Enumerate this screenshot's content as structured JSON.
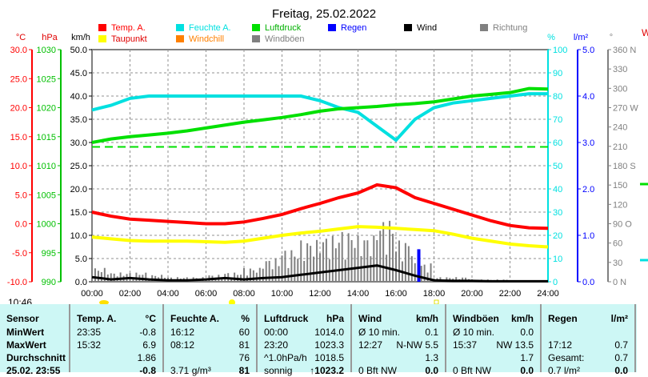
{
  "chart_data": {
    "type": "line",
    "title": "Freitag, 25.02.2022",
    "x_ticks": [
      "00:00",
      "02:00",
      "04:00",
      "06:00",
      "08:00",
      "10:00",
      "12:00",
      "14:00",
      "16:00",
      "18:00",
      "20:00",
      "22:00",
      "24:00"
    ],
    "x_hours": [
      0,
      1,
      2,
      3,
      4,
      5,
      6,
      7,
      8,
      9,
      10,
      11,
      12,
      13,
      14,
      15,
      16,
      17,
      18,
      19,
      20,
      21,
      22,
      23,
      24
    ],
    "axes": {
      "temp": {
        "unit": "°C",
        "range": [
          -10,
          30
        ],
        "ticks": [
          "-10.0",
          "-5.0",
          "0.0",
          "5.0",
          "10.0",
          "15.0",
          "20.0",
          "25.0",
          "30.0"
        ],
        "color": "#ff0000"
      },
      "pressure": {
        "unit": "hPa",
        "range": [
          990,
          1030
        ],
        "ticks": [
          "990",
          "995",
          "1000",
          "1005",
          "1010",
          "1015",
          "1020",
          "1025",
          "1030"
        ],
        "color": "#00c000"
      },
      "wind": {
        "unit": "km/h",
        "range": [
          0,
          50
        ],
        "ticks": [
          "0.0",
          "5.0",
          "10.0",
          "15.0",
          "20.0",
          "25.0",
          "30.0",
          "35.0",
          "40.0",
          "45.0",
          "50.0"
        ],
        "color": "#000000"
      },
      "humidity": {
        "unit": "%",
        "range": [
          0,
          100
        ],
        "ticks": [
          "0",
          "10",
          "20",
          "30",
          "40",
          "50",
          "60",
          "70",
          "80",
          "90",
          "100"
        ],
        "color": "#00e0e0"
      },
      "rain": {
        "unit": "l/m²",
        "range": [
          0,
          5
        ],
        "ticks": [
          "0.0",
          "1.0",
          "2.0",
          "3.0",
          "4.0",
          "5.0"
        ],
        "color": "#0000ff"
      },
      "direction": {
        "unit": "°",
        "range": [
          0,
          360
        ],
        "ticks": [
          "0   N",
          "30",
          "60",
          "90  O",
          "120",
          "150",
          "180 S",
          "210",
          "240",
          "270 W",
          "300",
          "330",
          "360 N"
        ],
        "color": "#808080"
      }
    },
    "legend": [
      {
        "label": "Temp. A.",
        "color": "#ff0000"
      },
      {
        "label": "Feuchte A.",
        "color": "#00e0e0"
      },
      {
        "label": "Luftdruck",
        "color": "#00e000"
      },
      {
        "label": "Regen",
        "color": "#0000ff"
      },
      {
        "label": "Wind",
        "color": "#000000"
      },
      {
        "label": "Richtung",
        "color": "#808080"
      },
      {
        "label": "Taupunkt",
        "color": "#ffff00"
      },
      {
        "label": "Windchill",
        "color": "#ff8000"
      },
      {
        "label": "Windböen",
        "color": "#808080"
      }
    ],
    "series": [
      {
        "name": "Temp. A.",
        "axis": "temp",
        "color": "#ff0000",
        "values": [
          2.0,
          1.3,
          0.8,
          0.6,
          0.4,
          0.2,
          0.0,
          0.0,
          0.3,
          0.9,
          1.6,
          2.6,
          3.5,
          4.5,
          5.3,
          6.7,
          6.2,
          4.5,
          3.5,
          2.5,
          1.5,
          0.5,
          -0.3,
          -0.7,
          -0.8
        ]
      },
      {
        "name": "Feuchte A.",
        "axis": "humidity",
        "color": "#00e0e0",
        "values": [
          74,
          76,
          79,
          80,
          80,
          80,
          80,
          80,
          80,
          80,
          80,
          80,
          78,
          75,
          73,
          67,
          61,
          70,
          75,
          77,
          78,
          79,
          80,
          81,
          81
        ]
      },
      {
        "name": "Luftdruck",
        "axis": "pressure",
        "color": "#00e000",
        "values": [
          1014.0,
          1014.6,
          1015.0,
          1015.3,
          1015.6,
          1016.0,
          1016.5,
          1017.0,
          1017.5,
          1017.9,
          1018.3,
          1018.8,
          1019.4,
          1019.8,
          1020.0,
          1020.2,
          1020.5,
          1020.7,
          1021.0,
          1021.5,
          1022.0,
          1022.3,
          1022.6,
          1023.3,
          1023.2
        ]
      },
      {
        "name": "Taupunkt",
        "axis": "temp",
        "color": "#ffff00",
        "values": [
          -2.3,
          -2.6,
          -2.9,
          -3.0,
          -3.0,
          -3.0,
          -3.1,
          -3.2,
          -3.0,
          -2.5,
          -2.0,
          -1.6,
          -1.3,
          -0.9,
          -0.5,
          -0.6,
          -0.8,
          -1.0,
          -1.2,
          -1.8,
          -2.5,
          -3.0,
          -3.5,
          -3.8,
          -4.0
        ]
      },
      {
        "name": "Wind",
        "axis": "wind",
        "color": "#000000",
        "values": [
          1.0,
          0.5,
          0.8,
          0.5,
          0.3,
          0.3,
          0.5,
          0.8,
          0.5,
          0.8,
          1.0,
          1.5,
          2.0,
          2.5,
          3.0,
          3.5,
          2.5,
          1.3,
          0.3,
          0.2,
          0.2,
          0.1,
          0.1,
          0.1,
          0.1
        ]
      },
      {
        "name": "Windböen",
        "axis": "wind",
        "color": "#808080",
        "type": "bar",
        "values": [
          3,
          2,
          2,
          1.5,
          1,
          1,
          1.5,
          2,
          3,
          5,
          7,
          9,
          10,
          11,
          10,
          13.5,
          9,
          4,
          1,
          1,
          0.5,
          0.5,
          0.3,
          0.3,
          0
        ]
      }
    ],
    "rain_bar": {
      "time": "17:12",
      "hour": 17.2,
      "value": 0.7
    },
    "reference_line": {
      "axis": "pressure",
      "value": 1013.25
    },
    "footer": {
      "time": "10:46"
    }
  },
  "table": {
    "headers": [
      [
        "Sensor",
        ""
      ],
      [
        "Temp. A.",
        "°C"
      ],
      [
        "Feuchte A.",
        "%"
      ],
      [
        "Luftdruck",
        "hPa"
      ],
      [
        "Wind",
        "km/h"
      ],
      [
        "Windböen",
        "km/h"
      ],
      [
        "Regen",
        "l/m²"
      ]
    ],
    "rows": [
      [
        "MinWert",
        "23:35",
        "-0.8",
        "16:12",
        "60",
        "00:00",
        "1014.0",
        "Ø 10 min.",
        "0.1",
        "Ø 10 min.",
        "0.0",
        "",
        ""
      ],
      [
        "MaxWert",
        "15:32",
        "6.9",
        "08:12",
        "81",
        "23:20",
        "1023.3",
        "12:27",
        "N-NW 5.5",
        "15:37",
        "NW 13.5",
        "17:12",
        "0.7"
      ],
      [
        "Durchschnitt",
        "",
        "1.86",
        "",
        "76",
        "^1.0hPa/h",
        "1018.5",
        "",
        "1.3",
        "",
        "1.7",
        "Gesamt:",
        "0.7"
      ],
      [
        "25.02. 23:55",
        "",
        "-0.8",
        "3.71 g/m³",
        "81",
        "sonnig",
        "↑1023.2",
        "0 Bft NW",
        "0.0",
        "0 Bft NW",
        "0.0",
        "0.7 l/m²",
        "0.0"
      ]
    ]
  }
}
